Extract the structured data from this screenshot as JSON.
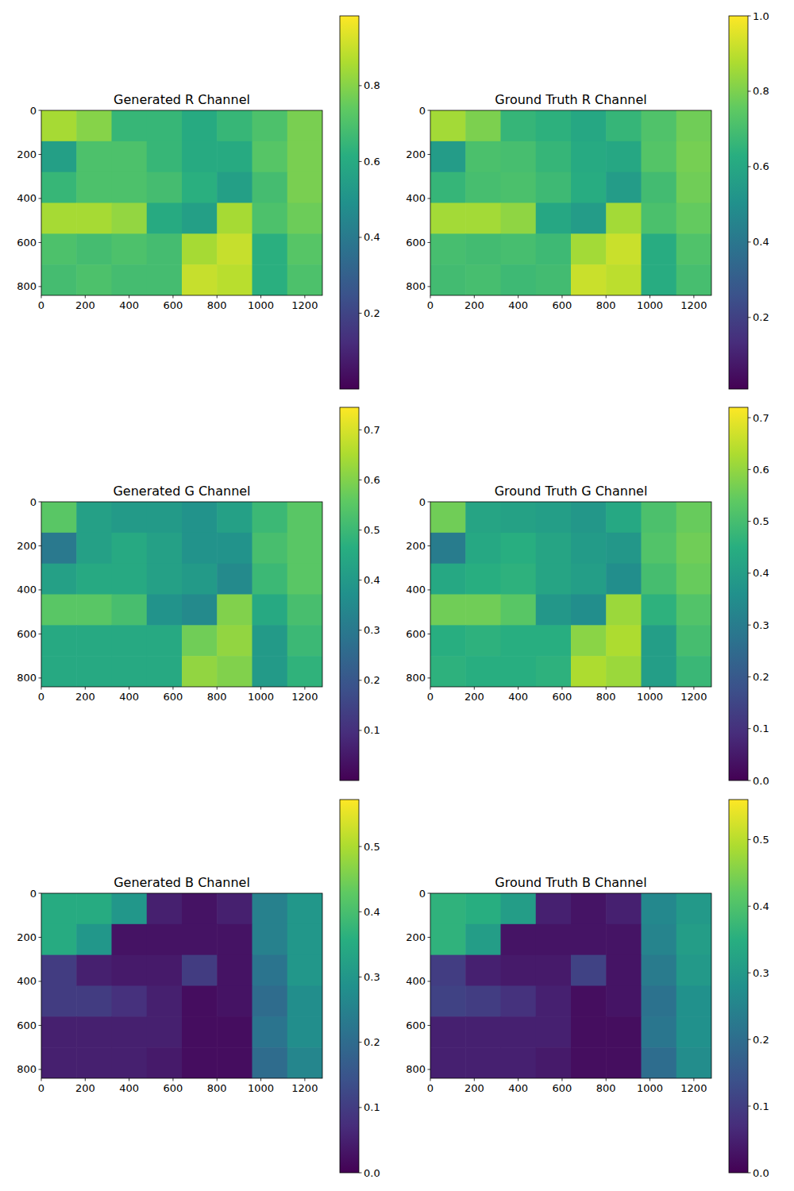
{
  "chart_data": [
    {
      "type": "heatmap",
      "title": "Generated R Channel",
      "xlim": [
        0,
        1280
      ],
      "ylim": [
        840,
        0
      ],
      "xticks": [
        0,
        200,
        400,
        600,
        800,
        1000,
        1200
      ],
      "yticks": [
        0,
        200,
        400,
        600,
        800
      ],
      "cells": [
        [
          0.85,
          0.8,
          0.65,
          0.65,
          0.6,
          0.65,
          0.7,
          0.78
        ],
        [
          0.55,
          0.7,
          0.7,
          0.65,
          0.6,
          0.6,
          0.72,
          0.78
        ],
        [
          0.65,
          0.7,
          0.7,
          0.68,
          0.62,
          0.55,
          0.68,
          0.78
        ],
        [
          0.85,
          0.85,
          0.82,
          0.6,
          0.55,
          0.85,
          0.7,
          0.76
        ],
        [
          0.7,
          0.68,
          0.7,
          0.68,
          0.85,
          0.9,
          0.62,
          0.72
        ],
        [
          0.68,
          0.7,
          0.68,
          0.68,
          0.9,
          0.88,
          0.62,
          0.7
        ]
      ],
      "colorbar": {
        "range": [
          0.0,
          0.984
        ],
        "ticks": [
          0.2,
          0.4,
          0.6,
          0.8
        ]
      }
    },
    {
      "type": "heatmap",
      "title": "Ground Truth R Channel",
      "xlim": [
        0,
        1280
      ],
      "ylim": [
        840,
        0
      ],
      "xticks": [
        0,
        200,
        400,
        600,
        800,
        1000,
        1200
      ],
      "yticks": [
        0,
        200,
        400,
        600,
        800
      ],
      "cells": [
        [
          0.86,
          0.8,
          0.66,
          0.64,
          0.6,
          0.66,
          0.72,
          0.78
        ],
        [
          0.55,
          0.71,
          0.7,
          0.66,
          0.61,
          0.6,
          0.73,
          0.79
        ],
        [
          0.66,
          0.7,
          0.71,
          0.68,
          0.62,
          0.55,
          0.69,
          0.78
        ],
        [
          0.86,
          0.86,
          0.83,
          0.6,
          0.55,
          0.86,
          0.71,
          0.76
        ],
        [
          0.7,
          0.69,
          0.7,
          0.68,
          0.86,
          0.92,
          0.62,
          0.72
        ],
        [
          0.69,
          0.7,
          0.68,
          0.69,
          0.92,
          0.9,
          0.62,
          0.7
        ]
      ],
      "colorbar": {
        "range": [
          0.01,
          1.0
        ],
        "ticks": [
          0.2,
          0.4,
          0.6,
          0.8,
          {
            "value": 1,
            "label": "1.0"
          }
        ]
      }
    },
    {
      "type": "heatmap",
      "title": "Generated G Channel",
      "xlim": [
        0,
        1280
      ],
      "ylim": [
        840,
        0
      ],
      "xticks": [
        0,
        200,
        400,
        600,
        800,
        1000,
        1200
      ],
      "yticks": [
        0,
        200,
        400,
        600,
        800
      ],
      "cells": [
        [
          0.55,
          0.42,
          0.4,
          0.4,
          0.38,
          0.42,
          0.5,
          0.55
        ],
        [
          0.3,
          0.42,
          0.45,
          0.42,
          0.38,
          0.38,
          0.52,
          0.55
        ],
        [
          0.42,
          0.45,
          0.45,
          0.42,
          0.4,
          0.35,
          0.5,
          0.55
        ],
        [
          0.55,
          0.55,
          0.52,
          0.38,
          0.35,
          0.6,
          0.45,
          0.52
        ],
        [
          0.45,
          0.45,
          0.45,
          0.45,
          0.58,
          0.62,
          0.4,
          0.5
        ],
        [
          0.45,
          0.45,
          0.45,
          0.45,
          0.62,
          0.6,
          0.4,
          0.48
        ]
      ],
      "colorbar": {
        "range": [
          0.0,
          0.745
        ],
        "ticks": [
          0.1,
          0.2,
          0.3,
          0.4,
          0.5,
          0.6,
          0.7
        ]
      }
    },
    {
      "type": "heatmap",
      "title": "Ground Truth G Channel",
      "xlim": [
        0,
        1280
      ],
      "ylim": [
        840,
        0
      ],
      "xticks": [
        0,
        200,
        400,
        600,
        800,
        1000,
        1200
      ],
      "yticks": [
        0,
        200,
        400,
        600,
        800
      ],
      "cells": [
        [
          0.56,
          0.42,
          0.41,
          0.4,
          0.38,
          0.43,
          0.51,
          0.55
        ],
        [
          0.3,
          0.43,
          0.45,
          0.42,
          0.39,
          0.38,
          0.52,
          0.56
        ],
        [
          0.43,
          0.45,
          0.46,
          0.42,
          0.4,
          0.35,
          0.5,
          0.55
        ],
        [
          0.56,
          0.56,
          0.53,
          0.38,
          0.35,
          0.61,
          0.46,
          0.52
        ],
        [
          0.45,
          0.46,
          0.45,
          0.45,
          0.59,
          0.63,
          0.4,
          0.5
        ],
        [
          0.46,
          0.45,
          0.45,
          0.46,
          0.63,
          0.61,
          0.4,
          0.48
        ]
      ],
      "colorbar": {
        "range": [
          0.0,
          0.72
        ],
        "ticks": [
          {
            "value": 0,
            "label": "0.0"
          },
          0.1,
          0.2,
          0.3,
          0.4,
          0.5,
          0.6,
          0.7
        ]
      }
    },
    {
      "type": "heatmap",
      "title": "Generated B Channel",
      "xlim": [
        0,
        1280
      ],
      "ylim": [
        840,
        0
      ],
      "xticks": [
        0,
        200,
        400,
        600,
        800,
        1000,
        1200
      ],
      "yticks": [
        0,
        200,
        400,
        600,
        800
      ],
      "cells": [
        [
          0.35,
          0.35,
          0.3,
          0.05,
          0.03,
          0.05,
          0.25,
          0.3
        ],
        [
          0.35,
          0.3,
          0.03,
          0.03,
          0.03,
          0.03,
          0.25,
          0.3
        ],
        [
          0.1,
          0.05,
          0.04,
          0.04,
          0.1,
          0.03,
          0.22,
          0.3
        ],
        [
          0.1,
          0.1,
          0.08,
          0.05,
          0.02,
          0.03,
          0.2,
          0.28
        ],
        [
          0.05,
          0.05,
          0.05,
          0.05,
          0.02,
          0.02,
          0.22,
          0.28
        ],
        [
          0.05,
          0.05,
          0.05,
          0.04,
          0.02,
          0.02,
          0.2,
          0.26
        ]
      ],
      "colorbar": {
        "range": [
          0.0,
          0.572
        ],
        "ticks": [
          {
            "value": 0,
            "label": "0.0"
          },
          0.1,
          0.2,
          0.3,
          0.4,
          0.5
        ]
      }
    },
    {
      "type": "heatmap",
      "title": "Ground Truth B Channel",
      "xlim": [
        0,
        1280
      ],
      "ylim": [
        840,
        0
      ],
      "xticks": [
        0,
        200,
        400,
        600,
        800,
        1000,
        1200
      ],
      "yticks": [
        0,
        200,
        400,
        600,
        800
      ],
      "cells": [
        [
          0.36,
          0.35,
          0.31,
          0.05,
          0.03,
          0.05,
          0.26,
          0.3
        ],
        [
          0.36,
          0.31,
          0.03,
          0.03,
          0.03,
          0.03,
          0.25,
          0.31
        ],
        [
          0.1,
          0.05,
          0.04,
          0.04,
          0.11,
          0.03,
          0.23,
          0.3
        ],
        [
          0.11,
          0.1,
          0.08,
          0.05,
          0.02,
          0.03,
          0.21,
          0.28
        ],
        [
          0.05,
          0.05,
          0.05,
          0.05,
          0.02,
          0.02,
          0.22,
          0.28
        ],
        [
          0.05,
          0.05,
          0.05,
          0.04,
          0.02,
          0.02,
          0.2,
          0.27
        ]
      ],
      "colorbar": {
        "range": [
          0.0,
          0.56
        ],
        "ticks": [
          {
            "value": 0,
            "label": "0.0"
          },
          0.1,
          0.2,
          0.3,
          0.4,
          0.5
        ]
      }
    }
  ]
}
